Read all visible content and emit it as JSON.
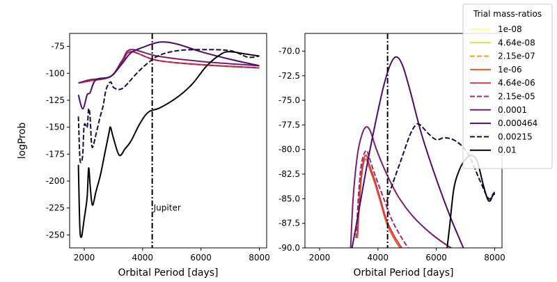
{
  "chart_data": [
    {
      "type": "line",
      "panel": "left",
      "xlabel": "Orbital Period [days]",
      "ylabel": "logProb",
      "xlim": [
        1500,
        8250
      ],
      "ylim": [
        -262,
        -63
      ],
      "xticks": [
        2000,
        4000,
        6000,
        8000
      ],
      "yticks": [
        -250,
        -225,
        -200,
        -175,
        -150,
        -125,
        -100,
        -75
      ],
      "annotation": {
        "text": "Jupiter",
        "x": 4330,
        "y": -225
      },
      "vline_x": 4330,
      "series": [
        {
          "name": "1e-08",
          "x": [
            1800,
            2200,
            2900,
            3300,
            3600,
            4500,
            6000,
            8000
          ],
          "y": [
            -109,
            -107,
            -103,
            -90,
            -80,
            -88,
            -92,
            -95
          ]
        },
        {
          "name": "4.64e-08",
          "x": [
            1800,
            2200,
            2900,
            3300,
            3600,
            4500,
            6000,
            8000
          ],
          "y": [
            -109,
            -107,
            -103,
            -90,
            -80,
            -88,
            -92,
            -95
          ]
        },
        {
          "name": "2.15e-07",
          "x": [
            1800,
            2200,
            2900,
            3300,
            3600,
            4500,
            6000,
            8000
          ],
          "y": [
            -109,
            -107,
            -103,
            -90,
            -80,
            -88,
            -92,
            -95
          ]
        },
        {
          "name": "1e-06",
          "x": [
            1800,
            2200,
            2900,
            3300,
            3600,
            4500,
            6000,
            8000
          ],
          "y": [
            -109,
            -107,
            -103,
            -90,
            -80,
            -88,
            -92,
            -95
          ]
        },
        {
          "name": "4.64e-06",
          "x": [
            1800,
            2200,
            2900,
            3300,
            3600,
            4500,
            6000,
            8000
          ],
          "y": [
            -109,
            -107,
            -103,
            -90,
            -80,
            -88,
            -92,
            -95
          ]
        },
        {
          "name": "2.15e-05",
          "x": [
            1800,
            2200,
            2900,
            3300,
            3600,
            4500,
            6000,
            8000
          ],
          "y": [
            -109,
            -107,
            -103,
            -90,
            -80,
            -88,
            -92,
            -95
          ]
        },
        {
          "name": "0.0001",
          "x": [
            1800,
            2200,
            2900,
            3300,
            3600,
            4500,
            6000,
            8000
          ],
          "y": [
            -109,
            -106,
            -103,
            -88,
            -78,
            -84,
            -89,
            -93
          ]
        },
        {
          "name": "0.000464",
          "x": [
            1800,
            1950,
            2100,
            2200,
            2400,
            2900,
            3300,
            3600,
            4000,
            4600,
            5200,
            6000,
            7000,
            8000
          ],
          "y": [
            -120,
            -133,
            -120,
            -118,
            -106,
            -103,
            -91,
            -81,
            -76,
            -71,
            -73,
            -80,
            -87,
            -93
          ]
        },
        {
          "name": "0.00215",
          "x": [
            1800,
            1850,
            1900,
            1950,
            2000,
            2100,
            2150,
            2200,
            2250,
            2300,
            2400,
            2550,
            2650,
            2750,
            2900,
            3000,
            3200,
            3400,
            3800,
            4200,
            4600,
            5200,
            6000,
            7000,
            7600,
            8000
          ],
          "y": [
            -140,
            -178,
            -182,
            -175,
            -148,
            -150,
            -133,
            -140,
            -165,
            -168,
            -157,
            -140,
            -130,
            -115,
            -108,
            -113,
            -115,
            -112,
            -100,
            -90,
            -83,
            -79,
            -78,
            -79,
            -85,
            -84
          ]
        },
        {
          "name": "0.01",
          "x": [
            1800,
            1850,
            1900,
            1950,
            2000,
            2100,
            2150,
            2200,
            2250,
            2300,
            2400,
            2550,
            2700,
            2850,
            2900,
            3000,
            3200,
            3400,
            3600,
            3900,
            4200,
            4600,
            5200,
            5700,
            6200,
            6700,
            7000,
            7500,
            8000
          ],
          "y": [
            -185,
            -243,
            -252,
            -245,
            -235,
            -215,
            -188,
            -203,
            -218,
            -222,
            -210,
            -195,
            -175,
            -155,
            -150,
            -160,
            -176,
            -170,
            -163,
            -147,
            -136,
            -132,
            -122,
            -110,
            -93,
            -82,
            -80,
            -82,
            -84
          ]
        }
      ]
    },
    {
      "type": "line",
      "panel": "right",
      "xlabel": "Orbital Period [days]",
      "ylabel": "",
      "xlim": [
        1500,
        8250
      ],
      "ylim": [
        -90,
        -68.2
      ],
      "xticks": [
        2000,
        4000,
        6000,
        8000
      ],
      "yticks": [
        -90.0,
        -87.5,
        -85.0,
        -82.5,
        -80.0,
        -77.5,
        -75.0,
        -72.5,
        -70.0
      ],
      "yticklabels": [
        "-90.0",
        "-87.5",
        "-85.0",
        "-82.5",
        "-80.0",
        "-77.5",
        "-75.0",
        "-72.5",
        "-70.0"
      ],
      "vline_x": 4330,
      "series": [
        {
          "name": "1e-06",
          "x": [
            3300,
            3400,
            3500,
            3600,
            3700,
            3900,
            4100,
            4300,
            4600,
            5000
          ],
          "y": [
            -89,
            -84,
            -81.5,
            -81,
            -81.8,
            -83.5,
            -85.5,
            -87.5,
            -89.3,
            -91
          ]
        },
        {
          "name": "4.64e-06",
          "x": [
            3300,
            3400,
            3500,
            3600,
            3700,
            3900,
            4100,
            4300,
            4600,
            5000
          ],
          "y": [
            -88.5,
            -83.5,
            -81.2,
            -80.6,
            -81.5,
            -83.2,
            -85.2,
            -87.2,
            -89,
            -90.8
          ]
        },
        {
          "name": "2.15e-05",
          "x": [
            3250,
            3350,
            3450,
            3600,
            3700,
            3900,
            4200,
            4500,
            4900,
            5200
          ],
          "y": [
            -89,
            -84,
            -81.2,
            -80.1,
            -80.8,
            -82.6,
            -85,
            -87.3,
            -89.4,
            -90.6
          ]
        },
        {
          "name": "0.0001",
          "x": [
            3050,
            3150,
            3300,
            3450,
            3600,
            3750,
            3950,
            4300,
            4700,
            5200,
            5800,
            6400,
            7000
          ],
          "y": [
            -91,
            -85,
            -80.5,
            -78.5,
            -77.7,
            -78.2,
            -80,
            -82.5,
            -84.8,
            -86.8,
            -88.5,
            -89.8,
            -90.8
          ]
        },
        {
          "name": "0.000464",
          "x": [
            3050,
            3300,
            3600,
            3900,
            4200,
            4450,
            4650,
            4850,
            5100,
            5500,
            6000,
            6500,
            7000
          ],
          "y": [
            -91,
            -87,
            -82,
            -77.5,
            -73.5,
            -71.2,
            -70.6,
            -71.5,
            -74,
            -78.5,
            -83,
            -87,
            -90.5
          ]
        },
        {
          "name": "0.00215",
          "x": [
            4300,
            4500,
            4800,
            5100,
            5300,
            5450,
            5700,
            6000,
            6300,
            6700,
            7100,
            7500,
            7800,
            8000
          ],
          "y": [
            -85.3,
            -83.5,
            -81,
            -78.5,
            -77.5,
            -77.5,
            -78.3,
            -79,
            -78.8,
            -79.2,
            -80.5,
            -83.2,
            -85,
            -84.3
          ]
        },
        {
          "name": "0.01",
          "x": [
            6350,
            6450,
            6600,
            6800,
            7000,
            7200,
            7400,
            7600,
            7750,
            7850,
            7950,
            8000
          ],
          "y": [
            -90.5,
            -88,
            -84,
            -82,
            -81,
            -80.6,
            -81.2,
            -83.5,
            -85,
            -85.2,
            -84.5,
            -84.6
          ]
        }
      ]
    }
  ],
  "legend": {
    "title": "Trial mass-ratios",
    "placement": "upper-right",
    "items": [
      {
        "label": "1e-08",
        "color": "#fcffa4",
        "dash": "solid"
      },
      {
        "label": "4.64e-08",
        "color": "#f6d543",
        "dash": "solid"
      },
      {
        "label": "2.15e-07",
        "color": "#fb9b06",
        "dash": "dashed"
      },
      {
        "label": "1e-06",
        "color": "#e45a31",
        "dash": "solid"
      },
      {
        "label": "4.64e-06",
        "color": "#c73e4c",
        "dash": "solid"
      },
      {
        "label": "2.15e-05",
        "color": "#a52c60",
        "dash": "dashed"
      },
      {
        "label": "0.0001",
        "color": "#7a1d6d",
        "dash": "solid"
      },
      {
        "label": "0.000464",
        "color": "#4a0c6b",
        "dash": "solid"
      },
      {
        "label": "0.00215",
        "color": "#1b0c41",
        "dash": "dashed"
      },
      {
        "label": "0.01",
        "color": "#000004",
        "dash": "solid"
      }
    ]
  }
}
